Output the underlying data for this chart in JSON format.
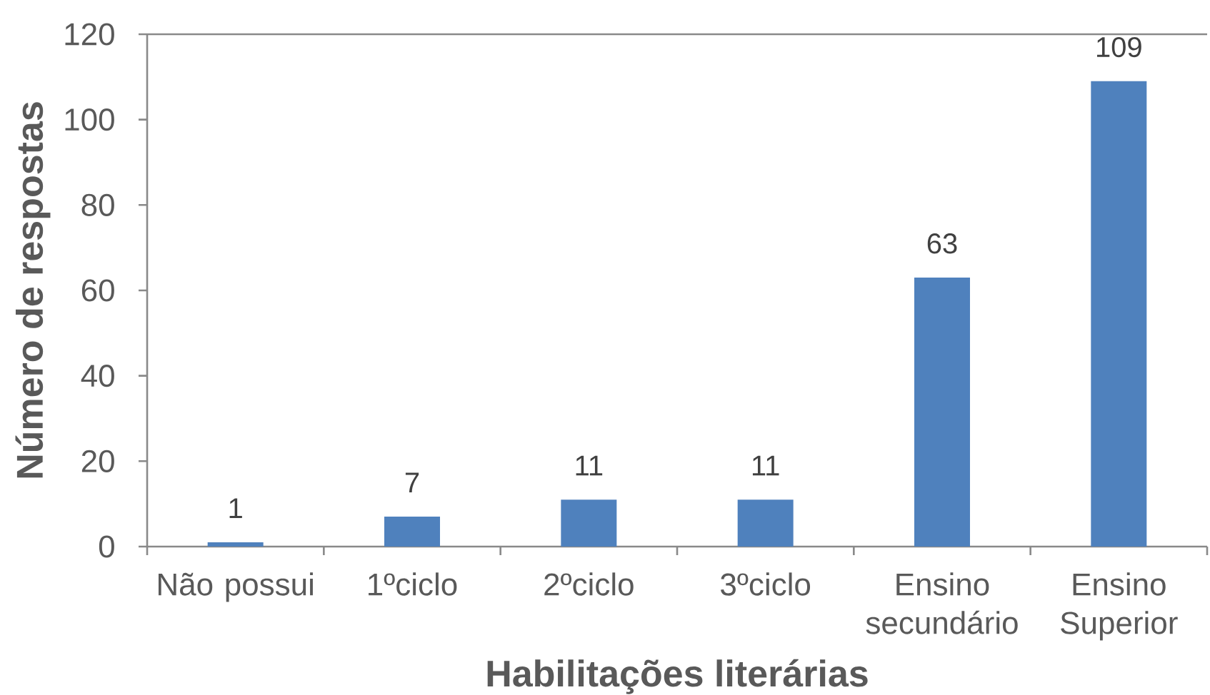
{
  "chart_data": {
    "type": "bar",
    "xlabel": "Habilitações literárias",
    "ylabel": "Número de respostas",
    "categories": [
      "Não possui",
      "1ºciclo",
      "2ºciclo",
      "3ºciclo",
      "Ensino secundário",
      "Ensino Superior"
    ],
    "values": [
      1,
      7,
      11,
      11,
      63,
      109
    ],
    "color": "#4f81bd",
    "ylim": [
      0,
      120
    ],
    "yticks": [
      0,
      20,
      40,
      60,
      80,
      100,
      120
    ],
    "data_labels": true
  }
}
